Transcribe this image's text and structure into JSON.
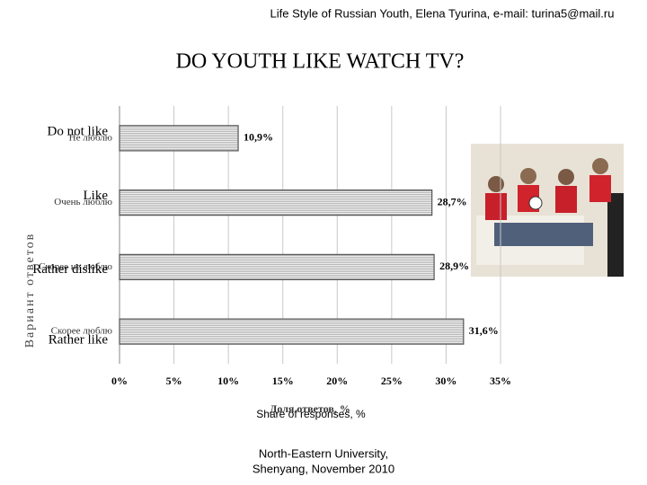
{
  "header": "Life Style of Russian Youth, Elena Tyurina, e-mail: turina5@mail.ru",
  "footer": [
    "North-Eastern University,",
    "Shenyang, November 2010"
  ],
  "chart_data": {
    "type": "bar",
    "orientation": "horizontal",
    "title": "DO YOUTH LIKE WATCH TV?",
    "categories": [
      "Do not like",
      "Like",
      "Rather dislike",
      "Rather like"
    ],
    "categories_original": [
      "Не люблю",
      "Очень люблю",
      "Скорее не люблю",
      "Скорее люблю"
    ],
    "values": [
      10.9,
      28.7,
      28.9,
      31.6
    ],
    "value_labels": [
      "10,9%",
      "28,7%",
      "28,9%",
      "31,6%"
    ],
    "color": "#d9d9d9",
    "xlim": [
      0,
      35
    ],
    "xticks": [
      {
        "value": 0,
        "label": "0%"
      },
      {
        "value": 5,
        "label": "5%"
      },
      {
        "value": 10,
        "label": "10%"
      },
      {
        "value": 15,
        "label": "15%"
      },
      {
        "value": 20,
        "label": "20%"
      },
      {
        "value": 25,
        "label": "25%"
      },
      {
        "value": 30,
        "label": "30%"
      },
      {
        "value": 35,
        "label": "35%"
      }
    ],
    "grid": true,
    "y_label": "Вариант ответов",
    "x_label": "Доля ответов, %",
    "x_label_en": "Share of responses, %"
  }
}
